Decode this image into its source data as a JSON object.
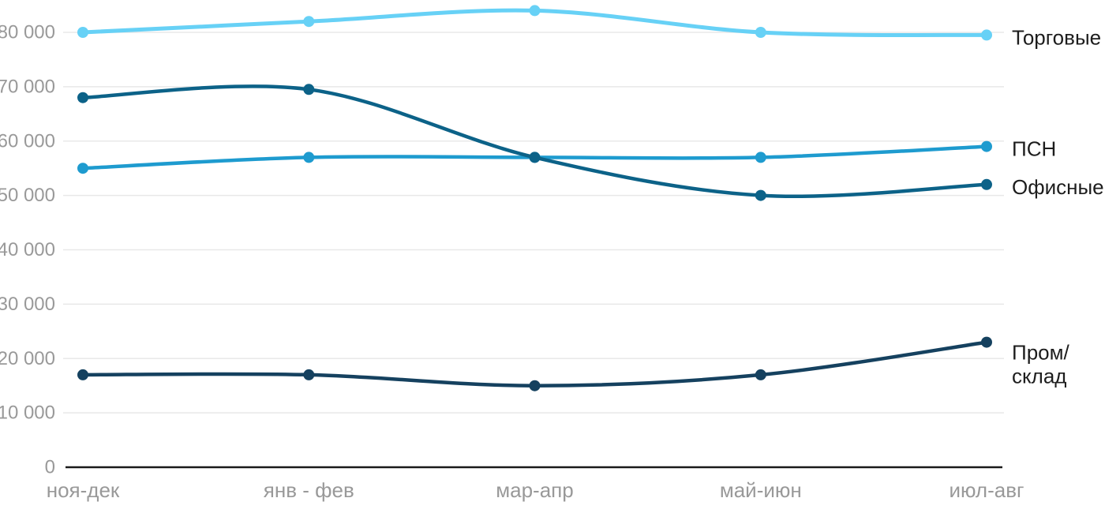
{
  "chart_data": {
    "type": "line",
    "title": "",
    "categories": [
      "ноя-дек",
      "янв - фев",
      "мар-апр",
      "май-июн",
      "июл-авг"
    ],
    "series": [
      {
        "key": "torgovye",
        "name": "Торговые",
        "color": "#67D1F6",
        "values": [
          80000,
          82000,
          84000,
          80000,
          79500
        ],
        "label_lines": [
          "Торговые"
        ]
      },
      {
        "key": "psn",
        "name": "ПСН",
        "color": "#1E9BCF",
        "values": [
          55000,
          57000,
          57000,
          57000,
          59000
        ],
        "label_lines": [
          "ПСН"
        ]
      },
      {
        "key": "ofisnye",
        "name": "Офисные",
        "color": "#0C6288",
        "values": [
          68000,
          69500,
          57000,
          50000,
          52000
        ],
        "label_lines": [
          "Офисные"
        ]
      },
      {
        "key": "prom-sklad",
        "name": "Пром/склад",
        "color": "#15415F",
        "values": [
          17000,
          17000,
          15000,
          17000,
          23000
        ],
        "label_lines": [
          "Пром/",
          "склад"
        ]
      }
    ],
    "yaxis": {
      "min": 0,
      "tick_step": 10000,
      "tick_max": 80000,
      "tick_labels": [
        "0",
        "10 000",
        "20 000",
        "30 000",
        "40 000",
        "50 000",
        "60 000",
        "70 000",
        "80 000"
      ]
    },
    "xaxis": {
      "tick_labels": [
        "ноя-дек",
        "янв - фев",
        "мар-апр",
        "май-июн",
        "июл-авг"
      ]
    },
    "grid": "horizontal",
    "legend_position": "right-of-line-ends",
    "colors": {
      "background": "#FFFFFF",
      "gridline": "#E8E8E8",
      "axis_line": "#1A1A1A",
      "tick_text": "#999999",
      "label_text": "#1D1D1D"
    }
  }
}
